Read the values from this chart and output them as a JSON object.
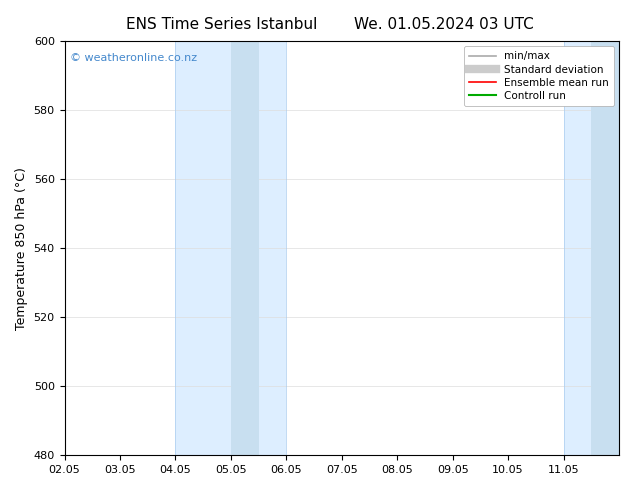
{
  "title_left": "ENS Time Series Istanbul",
  "title_right": "We. 01.05.2024 03 UTC",
  "ylabel": "Temperature 850 hPa (°C)",
  "ylim": [
    480,
    600
  ],
  "yticks": [
    480,
    500,
    520,
    540,
    560,
    580,
    600
  ],
  "xlim": [
    0,
    10
  ],
  "xtick_labels": [
    "02.05",
    "03.05",
    "04.05",
    "05.05",
    "06.05",
    "07.05",
    "08.05",
    "09.05",
    "10.05",
    "11.05"
  ],
  "xtick_positions": [
    0,
    1,
    2,
    3,
    4,
    5,
    6,
    7,
    8,
    9
  ],
  "shaded_bands": [
    {
      "xmin": 2,
      "xmax": 4,
      "color": "#ddeeff"
    },
    {
      "xmin": 9,
      "xmax": 10,
      "color": "#ddeeff"
    }
  ],
  "inner_bands": [
    {
      "xmin": 3,
      "xmax": 3.5,
      "color": "#c8dff0"
    },
    {
      "xmin": 9.5,
      "xmax": 10,
      "color": "#c8dff0"
    }
  ],
  "watermark": "© weatheronline.co.nz",
  "watermark_color": "#4488cc",
  "legend_entries": [
    {
      "label": "min/max",
      "color": "#aaaaaa",
      "lw": 1.2
    },
    {
      "label": "Standard deviation",
      "color": "#cccccc",
      "lw": 6
    },
    {
      "label": "Ensemble mean run",
      "color": "#ff0000",
      "lw": 1.2
    },
    {
      "label": "Controll run",
      "color": "#00aa00",
      "lw": 1.5
    }
  ],
  "bg_color": "#ffffff",
  "plot_bg_color": "#ffffff",
  "grid_color": "#dddddd",
  "spine_color": "#000000",
  "title_fontsize": 11,
  "tick_fontsize": 8,
  "ylabel_fontsize": 9
}
